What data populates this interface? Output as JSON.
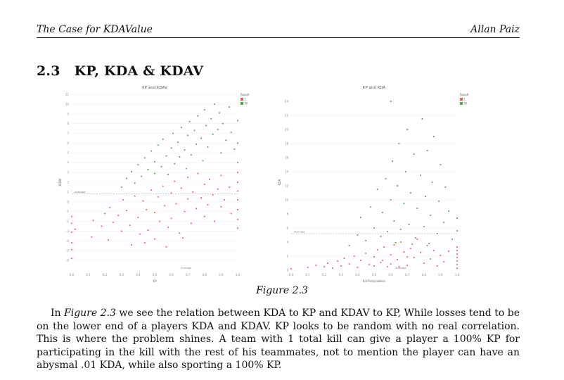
{
  "header": {
    "title": "The Case for KDAValue",
    "author": "Allan Paiz"
  },
  "section": {
    "number": "2.3",
    "title": "KP, KDA & KDAV"
  },
  "figure_caption": "Figure 2.3",
  "paragraph": {
    "lead": "In ",
    "ref": "Figure 2.3",
    "text": " we see the relation between KDA to KP and KDAV to KP, While losses tend to be on the lower end of a players KDA and KDAV. KP looks to be random with no real correlation. This is where the problem shines. A team with 1 total kill can give a player a 100% KP for participating in the kill with the rest of his teammates, not to mention the player can have an abysmal .01 KDA, while also sporting a 100% KP."
  },
  "colors": {
    "loss": "#e8625e",
    "win": "#4fa84a"
  },
  "chart_data": [
    {
      "type": "scatter",
      "title": "KP and KDAV",
      "xlabel": "KP",
      "ylabel": "KDAV",
      "xlim": [
        0,
        1
      ],
      "ylim": [
        -7,
        11
      ],
      "x_ticks": [
        "0.0",
        "0.1",
        "0.2",
        "0.3",
        "0.4",
        "0.5",
        "0.6",
        "0.7",
        "0.8",
        "0.9",
        "1.0"
      ],
      "y_ticks": [
        "-6",
        "-5",
        "-4",
        "-3",
        "-2",
        "-1",
        "0",
        "1",
        "2",
        "3",
        "4",
        "5",
        "6",
        "7",
        "8",
        "9",
        "10",
        "11"
      ],
      "legend": {
        "title": "Result",
        "placement": "top-right",
        "items": [
          "L",
          "W"
        ]
      },
      "reference_lines": [
        {
          "axis": "y",
          "value": 0.8,
          "label": "Average"
        },
        {
          "axis": "x",
          "value": 0.69,
          "label": "Average"
        }
      ],
      "series": [
        {
          "name": "L",
          "points": [
            [
              0.0,
              -5.8
            ],
            [
              0.0,
              -4.2
            ],
            [
              0.0,
              -3.1
            ],
            [
              0.0,
              -2.2
            ],
            [
              0.0,
              -1.5
            ],
            [
              0.0,
              -4.9
            ],
            [
              0.02,
              -2.8
            ],
            [
              0.12,
              -3.6
            ],
            [
              0.13,
              -1.9
            ],
            [
              0.18,
              -2.5
            ],
            [
              0.2,
              -1.2
            ],
            [
              0.22,
              -3.9
            ],
            [
              0.23,
              -0.6
            ],
            [
              0.25,
              -2.1
            ],
            [
              0.28,
              -1.4
            ],
            [
              0.3,
              -3.0
            ],
            [
              0.31,
              0.2
            ],
            [
              0.33,
              -0.9
            ],
            [
              0.35,
              -2.4
            ],
            [
              0.36,
              -4.4
            ],
            [
              0.38,
              0.6
            ],
            [
              0.4,
              -1.6
            ],
            [
              0.41,
              -3.3
            ],
            [
              0.43,
              0.1
            ],
            [
              0.45,
              -0.8
            ],
            [
              0.46,
              -2.9
            ],
            [
              0.48,
              1.2
            ],
            [
              0.5,
              -1.1
            ],
            [
              0.5,
              -3.8
            ],
            [
              0.52,
              0.5
            ],
            [
              0.53,
              -2.0
            ],
            [
              0.55,
              1.6
            ],
            [
              0.56,
              -0.4
            ],
            [
              0.58,
              -2.6
            ],
            [
              0.6,
              0.9
            ],
            [
              0.6,
              -1.7
            ],
            [
              0.62,
              2.1
            ],
            [
              0.63,
              -0.2
            ],
            [
              0.65,
              -3.2
            ],
            [
              0.66,
              1.4
            ],
            [
              0.68,
              -1.0
            ],
            [
              0.7,
              2.5
            ],
            [
              0.7,
              0.3
            ],
            [
              0.72,
              -2.2
            ],
            [
              0.73,
              1.0
            ],
            [
              0.75,
              -0.7
            ],
            [
              0.76,
              2.9
            ],
            [
              0.78,
              0.4
            ],
            [
              0.8,
              -1.5
            ],
            [
              0.8,
              1.8
            ],
            [
              0.82,
              -0.3
            ],
            [
              0.83,
              2.3
            ],
            [
              0.85,
              0.7
            ],
            [
              0.86,
              -2.0
            ],
            [
              0.88,
              1.3
            ],
            [
              0.9,
              -0.5
            ],
            [
              0.9,
              2.7
            ],
            [
              0.92,
              0.2
            ],
            [
              0.95,
              1.5
            ],
            [
              0.96,
              -1.2
            ],
            [
              1.0,
              -1.8
            ],
            [
              1.0,
              -0.8
            ],
            [
              1.0,
              0.2
            ],
            [
              1.0,
              1.1
            ],
            [
              1.0,
              2.0
            ],
            [
              1.0,
              3.0
            ],
            [
              1.0,
              -2.7
            ],
            [
              0.44,
              -4.2
            ],
            [
              0.57,
              -4.6
            ],
            [
              0.67,
              -3.7
            ]
          ]
        },
        {
          "name": "W",
          "points": [
            [
              0.3,
              1.5
            ],
            [
              0.33,
              2.4
            ],
            [
              0.36,
              3.1
            ],
            [
              0.38,
              1.9
            ],
            [
              0.4,
              3.8
            ],
            [
              0.42,
              2.6
            ],
            [
              0.44,
              4.5
            ],
            [
              0.46,
              3.3
            ],
            [
              0.48,
              5.2
            ],
            [
              0.5,
              2.9
            ],
            [
              0.5,
              4.1
            ],
            [
              0.52,
              5.8
            ],
            [
              0.54,
              3.6
            ],
            [
              0.55,
              6.4
            ],
            [
              0.57,
              4.7
            ],
            [
              0.58,
              2.8
            ],
            [
              0.6,
              5.5
            ],
            [
              0.61,
              7.0
            ],
            [
              0.62,
              3.9
            ],
            [
              0.64,
              6.1
            ],
            [
              0.65,
              4.6
            ],
            [
              0.66,
              7.6
            ],
            [
              0.68,
              5.3
            ],
            [
              0.69,
              3.4
            ],
            [
              0.7,
              6.8
            ],
            [
              0.71,
              8.2
            ],
            [
              0.72,
              4.8
            ],
            [
              0.74,
              7.3
            ],
            [
              0.75,
              5.9
            ],
            [
              0.76,
              8.8
            ],
            [
              0.78,
              6.5
            ],
            [
              0.79,
              4.2
            ],
            [
              0.8,
              9.4
            ],
            [
              0.81,
              7.8
            ],
            [
              0.82,
              5.6
            ],
            [
              0.84,
              8.5
            ],
            [
              0.85,
              6.9
            ],
            [
              0.86,
              10.0
            ],
            [
              0.88,
              7.4
            ],
            [
              0.89,
              9.1
            ],
            [
              0.9,
              5.0
            ],
            [
              0.91,
              8.0
            ],
            [
              0.93,
              6.3
            ],
            [
              0.95,
              9.7
            ],
            [
              0.96,
              7.1
            ],
            [
              0.98,
              5.4
            ],
            [
              1.0,
              4.0
            ],
            [
              1.0,
              6.0
            ],
            [
              1.0,
              8.3
            ]
          ]
        }
      ]
    },
    {
      "type": "scatter",
      "title": "KP and KDA",
      "xlabel": "Kill Participation",
      "ylabel": "KDA",
      "xlim": [
        0,
        1
      ],
      "ylim": [
        0,
        25
      ],
      "x_ticks": [
        "0.0",
        "0.1",
        "0.2",
        "0.3",
        "0.4",
        "0.5",
        "0.6",
        "0.7",
        "0.8",
        "0.9",
        "1.0"
      ],
      "y_ticks": [
        "0",
        "2",
        "4",
        "6",
        "8",
        "10",
        "12",
        "14",
        "16",
        "18",
        "20",
        "22",
        "24"
      ],
      "legend": {
        "title": "Result",
        "placement": "top-right",
        "items": [
          "L",
          "W"
        ]
      },
      "reference_lines": [
        {
          "axis": "y",
          "value": 5.2,
          "label": "Average"
        },
        {
          "axis": "x",
          "value": 0.66,
          "label": "Average"
        }
      ],
      "series": [
        {
          "name": "L",
          "points": [
            [
              0.0,
              0.2
            ],
            [
              0.1,
              0.4
            ],
            [
              0.15,
              0.7
            ],
            [
              0.2,
              0.5
            ],
            [
              0.22,
              1.0
            ],
            [
              0.25,
              0.3
            ],
            [
              0.28,
              1.3
            ],
            [
              0.3,
              0.6
            ],
            [
              0.32,
              1.7
            ],
            [
              0.35,
              0.9
            ],
            [
              0.38,
              2.0
            ],
            [
              0.4,
              0.4
            ],
            [
              0.42,
              1.4
            ],
            [
              0.45,
              2.4
            ],
            [
              0.47,
              0.8
            ],
            [
              0.5,
              1.9
            ],
            [
              0.52,
              2.9
            ],
            [
              0.54,
              1.1
            ],
            [
              0.56,
              3.3
            ],
            [
              0.58,
              0.5
            ],
            [
              0.6,
              2.2
            ],
            [
              0.62,
              3.6
            ],
            [
              0.64,
              1.5
            ],
            [
              0.66,
              4.0
            ],
            [
              0.68,
              2.6
            ],
            [
              0.7,
              0.7
            ],
            [
              0.72,
              3.1
            ],
            [
              0.74,
              1.8
            ],
            [
              0.76,
              4.4
            ],
            [
              0.78,
              2.5
            ],
            [
              0.8,
              1.0
            ],
            [
              0.82,
              3.5
            ],
            [
              0.84,
              1.6
            ],
            [
              0.86,
              2.8
            ],
            [
              0.88,
              0.6
            ],
            [
              0.9,
              2.1
            ],
            [
              0.92,
              1.2
            ],
            [
              0.95,
              2.7
            ],
            [
              1.0,
              0.3
            ],
            [
              1.0,
              0.8
            ],
            [
              1.0,
              1.3
            ],
            [
              1.0,
              1.8
            ],
            [
              1.0,
              2.3
            ],
            [
              1.0,
              2.8
            ],
            [
              1.0,
              3.3
            ],
            [
              0.5,
              0.6
            ],
            [
              0.55,
              1.4
            ],
            [
              0.6,
              0.9
            ],
            [
              0.65,
              0.5
            ],
            [
              0.7,
              1.9
            ]
          ]
        },
        {
          "name": "W",
          "points": [
            [
              0.35,
              3.5
            ],
            [
              0.4,
              5.0
            ],
            [
              0.42,
              7.5
            ],
            [
              0.45,
              4.2
            ],
            [
              0.48,
              9.0
            ],
            [
              0.5,
              6.0
            ],
            [
              0.52,
              11.5
            ],
            [
              0.54,
              4.8
            ],
            [
              0.55,
              8.2
            ],
            [
              0.57,
              13.0
            ],
            [
              0.58,
              5.5
            ],
            [
              0.6,
              10.0
            ],
            [
              0.61,
              15.5
            ],
            [
              0.62,
              7.0
            ],
            [
              0.64,
              12.0
            ],
            [
              0.65,
              18.0
            ],
            [
              0.66,
              5.8
            ],
            [
              0.68,
              9.5
            ],
            [
              0.69,
              14.0
            ],
            [
              0.7,
              20.0
            ],
            [
              0.71,
              6.5
            ],
            [
              0.72,
              11.0
            ],
            [
              0.74,
              16.5
            ],
            [
              0.75,
              4.6
            ],
            [
              0.76,
              8.8
            ],
            [
              0.78,
              13.5
            ],
            [
              0.79,
              21.5
            ],
            [
              0.8,
              6.2
            ],
            [
              0.81,
              10.5
            ],
            [
              0.82,
              17.0
            ],
            [
              0.84,
              7.8
            ],
            [
              0.85,
              12.5
            ],
            [
              0.86,
              19.0
            ],
            [
              0.88,
              5.2
            ],
            [
              0.89,
              9.8
            ],
            [
              0.9,
              15.0
            ],
            [
              0.92,
              6.8
            ],
            [
              0.93,
              11.8
            ],
            [
              0.95,
              8.4
            ],
            [
              0.97,
              4.4
            ],
            [
              1.0,
              5.6
            ],
            [
              1.0,
              7.4
            ],
            [
              0.6,
              24.0
            ],
            [
              0.63,
              3.9
            ],
            [
              0.73,
              3.7
            ],
            [
              0.83,
              3.8
            ]
          ]
        }
      ]
    }
  ]
}
